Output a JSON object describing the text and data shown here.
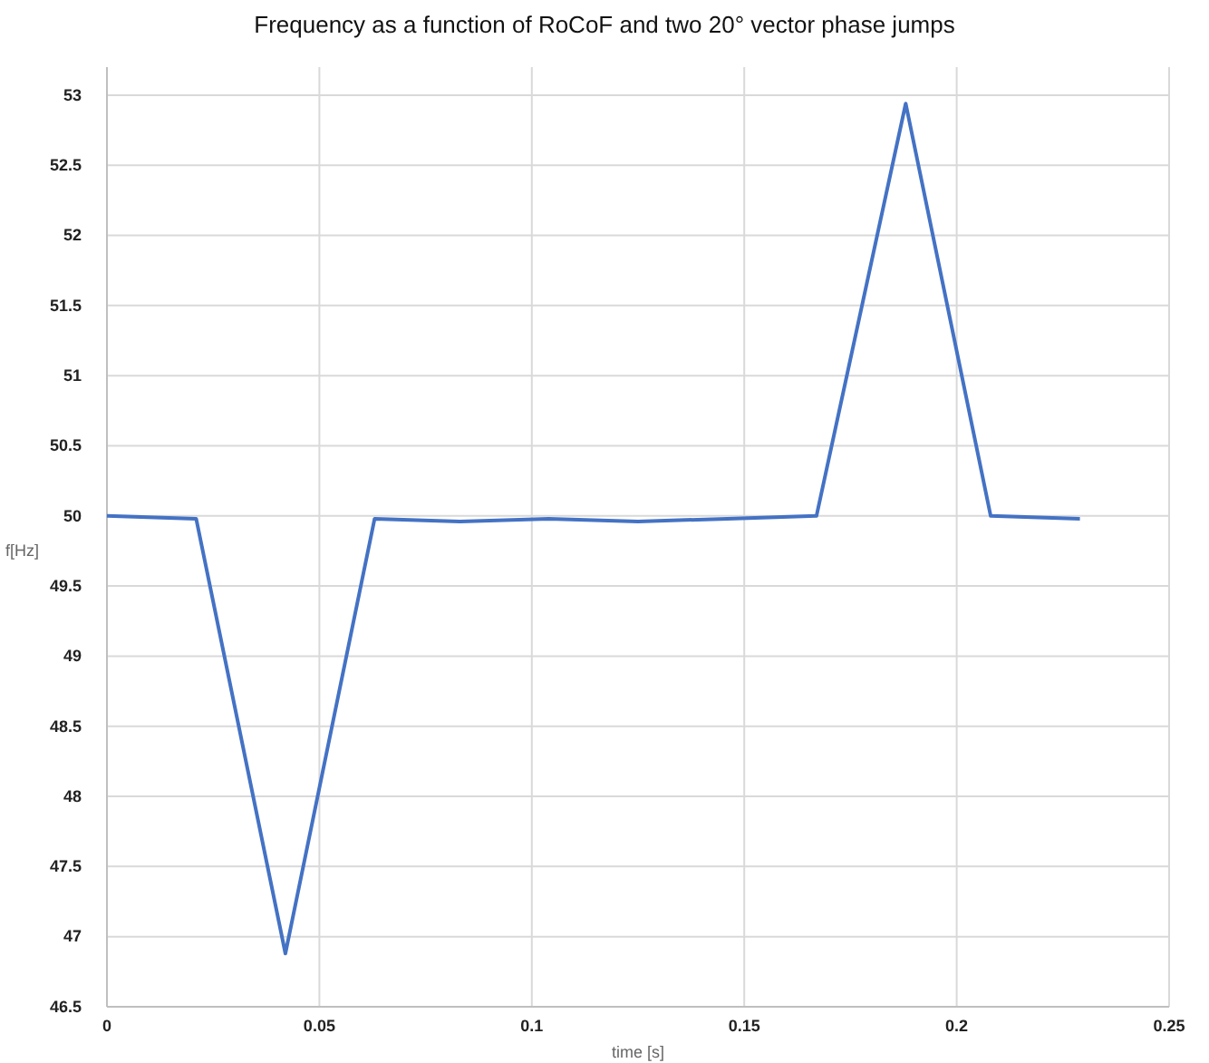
{
  "chart_data": {
    "type": "line",
    "title": "Frequency as a function of RoCoF and two 20° vector phase jumps",
    "xlabel": "time [s]",
    "ylabel": "f[Hz]",
    "x": [
      0,
      0.021,
      0.042,
      0.063,
      0.083,
      0.104,
      0.125,
      0.146,
      0.167,
      0.188,
      0.208,
      0.229
    ],
    "series": [
      {
        "color": "#4472c4",
        "values": [
          50,
          49.98,
          46.88,
          49.98,
          49.96,
          49.98,
          49.96,
          49.98,
          50,
          52.94,
          50,
          49.98
        ]
      }
    ],
    "xlim": [
      0,
      0.25
    ],
    "xticks": [
      0,
      0.05,
      0.1,
      0.15,
      0.2,
      0.25
    ],
    "ylim": [
      46.5,
      53.2
    ],
    "yticks": [
      46.5,
      47,
      47.5,
      48,
      48.5,
      49,
      49.5,
      50,
      50.5,
      51,
      51.5,
      52,
      52.5,
      53
    ],
    "grid": true,
    "marker": "none",
    "line_style": "solid"
  }
}
